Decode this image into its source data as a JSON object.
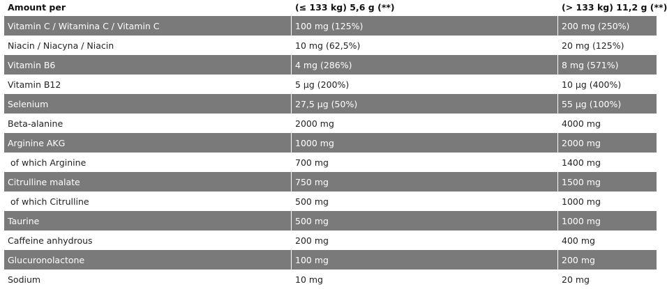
{
  "table": {
    "header": [
      "Amount per",
      "(≤ 133 kg) 5,6 g (**)",
      "(> 133 kg) 11,2 g (**)"
    ],
    "rows": [
      [
        "Vitamin C / Witamina C / Vitamin C",
        "100 mg (125%)",
        "200 mg (250%)"
      ],
      [
        "Niacin / Niacyna / Niacin",
        "10 mg (62,5%)",
        "20 mg (125%)"
      ],
      [
        "Vitamin B6",
        "4 mg (286%)",
        "8 mg (571%)"
      ],
      [
        "Vitamin B12",
        "5 µg (200%)",
        "10 µg (400%)"
      ],
      [
        "Selenium",
        "27,5 µg (50%)",
        "55 µg (100%)"
      ],
      [
        "Beta-alanine",
        "2000 mg",
        "4000 mg"
      ],
      [
        "Arginine AKG",
        "1000 mg",
        "2000 mg"
      ],
      [
        " of which Arginine",
        "700 mg",
        "1400 mg"
      ],
      [
        "Citrulline malate",
        "750 mg",
        "1500 mg"
      ],
      [
        " of which Citrulline",
        "500 mg",
        "1000 mg"
      ],
      [
        "Taurine",
        "500 mg",
        "1000 mg"
      ],
      [
        "Caffeine anhydrous",
        "200 mg",
        "400 mg"
      ],
      [
        "Glucuronolactone",
        "100 mg",
        "200 mg"
      ],
      [
        "Sodium",
        "10 mg",
        "20 mg"
      ]
    ]
  }
}
